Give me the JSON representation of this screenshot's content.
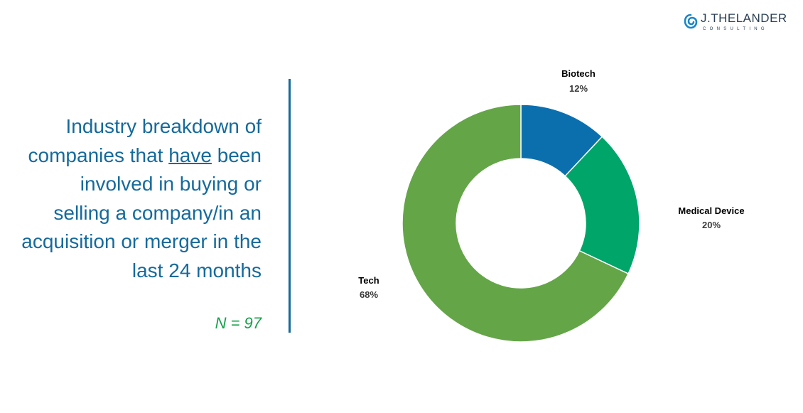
{
  "logo": {
    "name": "J.THELANDER",
    "sub": "CONSULTING"
  },
  "headline": {
    "before": "Industry breakdown of companies that ",
    "emphasis": "have",
    "after": " been involved in buying or selling a company/in an acquisition or merger in the last 24 months"
  },
  "sample_size": "N = 97",
  "colors": {
    "headline": "#156a9c",
    "sample_size": "#15a24a",
    "divider": "#156a9c"
  },
  "chart_data": {
    "type": "pie",
    "donut": true,
    "categories": [
      "Biotech",
      "Medical Device",
      "Tech"
    ],
    "values": [
      12,
      20,
      68
    ],
    "value_labels": [
      "12%",
      "20%",
      "68%"
    ],
    "colors": [
      "#0b6fae",
      "#00a56a",
      "#64a548"
    ]
  }
}
